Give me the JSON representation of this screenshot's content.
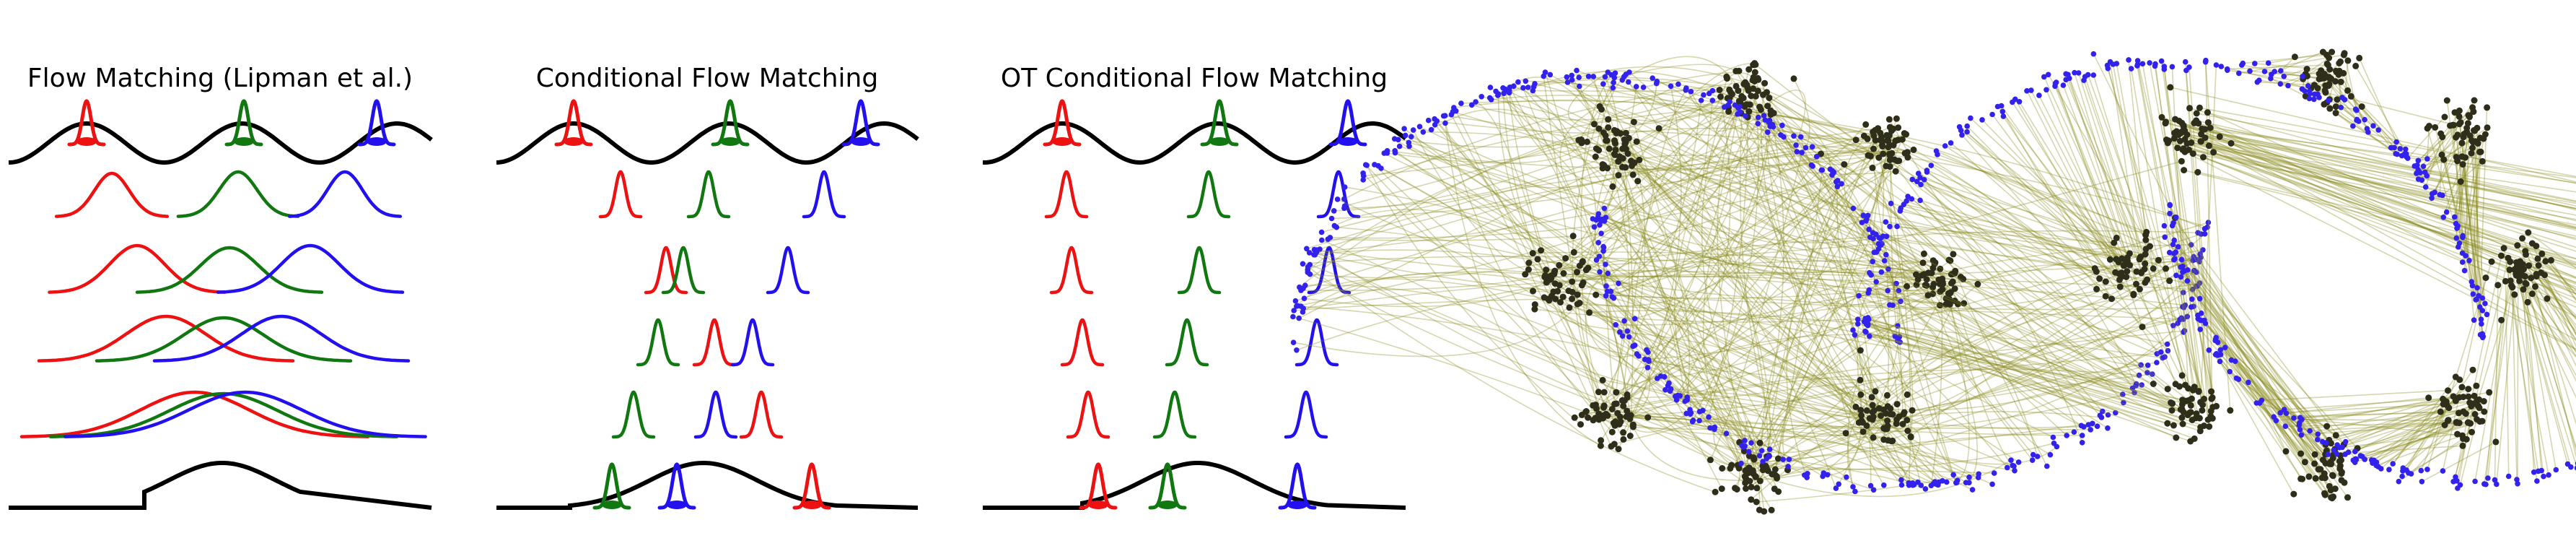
{
  "panels": [
    {
      "title": "Flow Matching (Lipman et al.)"
    },
    {
      "title": "Conditional Flow Matching"
    },
    {
      "title": "OT Conditional Flow Matching"
    }
  ],
  "colors": {
    "red": "#ee1111",
    "green": "#117711",
    "blue": "#2211ee",
    "black": "#000000",
    "path": "#8a8a1e",
    "source_point": "#2e2e1a",
    "target_point": "#3322ee"
  }
}
